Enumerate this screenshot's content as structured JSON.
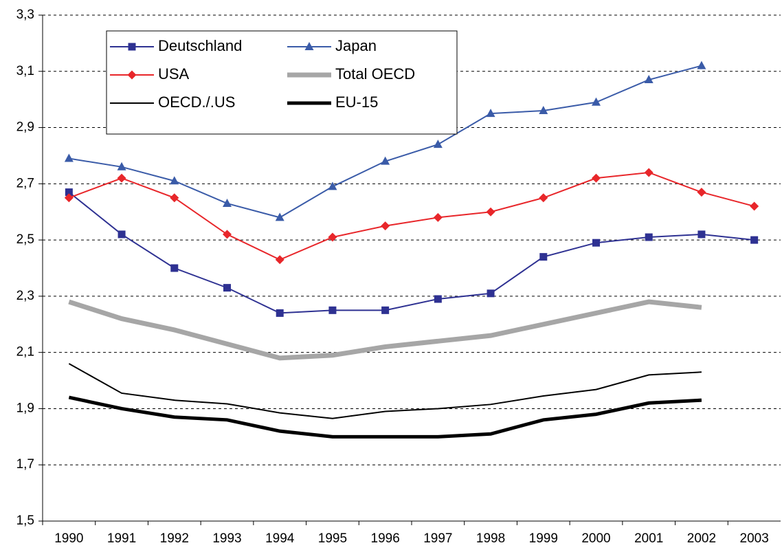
{
  "chart_data": {
    "type": "line",
    "categories": [
      "1990",
      "1991",
      "1992",
      "1993",
      "1994",
      "1995",
      "1996",
      "1997",
      "1998",
      "1999",
      "2000",
      "2001",
      "2002",
      "2003"
    ],
    "ylim": [
      1.5,
      3.3
    ],
    "yticks": [
      {
        "value": 1.5,
        "label": "1,5"
      },
      {
        "value": 1.7,
        "label": "1,7"
      },
      {
        "value": 1.9,
        "label": "1,9"
      },
      {
        "value": 2.1,
        "label": "2,1"
      },
      {
        "value": 2.3,
        "label": "2,3"
      },
      {
        "value": 2.5,
        "label": "2,5"
      },
      {
        "value": 2.7,
        "label": "2,7"
      },
      {
        "value": 2.9,
        "label": "2,9"
      },
      {
        "value": 3.1,
        "label": "3,1"
      },
      {
        "value": 3.3,
        "label": "3,3"
      }
    ],
    "grid": true,
    "series": [
      {
        "name": "Deutschland",
        "color": "#2e3192",
        "marker": "square",
        "values": [
          2.67,
          2.52,
          2.4,
          2.33,
          2.24,
          2.25,
          2.25,
          2.29,
          2.31,
          2.44,
          2.49,
          2.51,
          2.52,
          2.5
        ]
      },
      {
        "name": "Japan",
        "color": "#3a5ba8",
        "marker": "triangle",
        "values": [
          2.79,
          2.76,
          2.71,
          2.63,
          2.58,
          2.69,
          2.78,
          2.84,
          2.95,
          2.96,
          2.99,
          3.07,
          3.12,
          null
        ]
      },
      {
        "name": "USA",
        "color": "#e8262a",
        "marker": "diamond",
        "values": [
          2.65,
          2.72,
          2.65,
          2.52,
          2.43,
          2.51,
          2.55,
          2.58,
          2.6,
          2.65,
          2.72,
          2.74,
          2.67,
          2.62
        ]
      },
      {
        "name": "Total OECD",
        "color": "#a6a6a6",
        "values": [
          2.28,
          2.22,
          2.18,
          2.13,
          2.08,
          2.09,
          2.12,
          2.14,
          2.16,
          2.2,
          2.24,
          2.28,
          2.26,
          null
        ]
      },
      {
        "name": "OECD./.US",
        "color": "#000000",
        "values": [
          2.06,
          1.955,
          1.93,
          1.917,
          1.885,
          1.865,
          1.89,
          1.9,
          1.915,
          1.945,
          1.968,
          2.02,
          2.03,
          null
        ]
      },
      {
        "name": "EU-15",
        "color": "#000000",
        "values": [
          1.94,
          1.9,
          1.87,
          1.86,
          1.82,
          1.8,
          1.8,
          1.8,
          1.81,
          1.86,
          1.88,
          1.92,
          1.93,
          null
        ]
      }
    ]
  }
}
